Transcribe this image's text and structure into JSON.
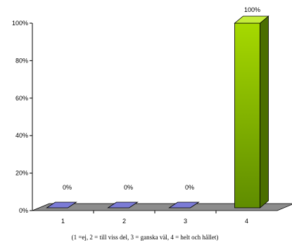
{
  "chart_data": {
    "type": "bar",
    "categories": [
      "1",
      "2",
      "3",
      "4"
    ],
    "values": [
      0,
      0,
      0,
      100
    ],
    "data_labels": [
      "0%",
      "0%",
      "0%",
      "100%"
    ],
    "yticks": [
      "0%",
      "20%",
      "40%",
      "60%",
      "80%",
      "100%"
    ],
    "ylim": [
      0,
      100
    ],
    "xlabel": "(1 =ej, 2 = till viss del, 3 = ganska väl, 4 = helt och hållet)",
    "ylabel": "",
    "title": "",
    "grid": false,
    "three_d": true,
    "colors": {
      "bar_front_top": "#a6d900",
      "bar_front_bottom": "#5f8c00",
      "bar_side": "#4a6e00",
      "bar_top": "#c4ec3a",
      "flat_bar": "#7b7bd6",
      "floor": "#8c8c8c",
      "outline": "#000000"
    }
  }
}
